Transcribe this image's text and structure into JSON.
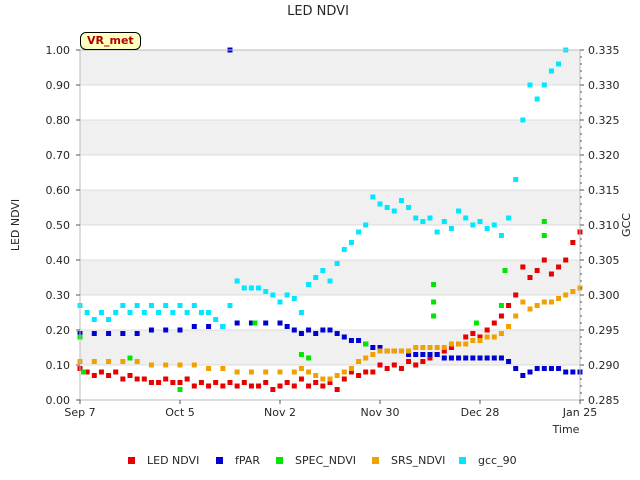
{
  "chart_data": {
    "type": "scatter",
    "title": "LED NDVI",
    "badge": "VR_met",
    "xlabel": "Time",
    "ylabel": "LED NDVI",
    "ylabel_right": "GCC",
    "x_range_days": [
      0,
      140
    ],
    "x_ticks": [
      {
        "label": "Sep 7",
        "day": 0
      },
      {
        "label": "Oct 5",
        "day": 28
      },
      {
        "label": "Nov 2",
        "day": 56
      },
      {
        "label": "Nov 30",
        "day": 84
      },
      {
        "label": "Dec 28",
        "day": 112
      },
      {
        "label": "Jan 25",
        "day": 140
      }
    ],
    "ylim": [
      0,
      1.0
    ],
    "y_ticks": [
      "0.00",
      "0.10",
      "0.20",
      "0.30",
      "0.40",
      "0.50",
      "0.60",
      "0.70",
      "0.80",
      "0.90",
      "1.00"
    ],
    "ylim_right": [
      0.285,
      0.335
    ],
    "y_ticks_right": [
      "0.285",
      "0.290",
      "0.295",
      "0.300",
      "0.305",
      "0.310",
      "0.315",
      "0.320",
      "0.325",
      "0.330",
      "0.335"
    ],
    "series": [
      {
        "name": "LED NDVI",
        "axis": "left",
        "color": "#e60000",
        "points": [
          [
            0,
            0.09
          ],
          [
            2,
            0.08
          ],
          [
            4,
            0.07
          ],
          [
            6,
            0.08
          ],
          [
            8,
            0.07
          ],
          [
            10,
            0.08
          ],
          [
            12,
            0.06
          ],
          [
            14,
            0.07
          ],
          [
            16,
            0.06
          ],
          [
            18,
            0.06
          ],
          [
            20,
            0.05
          ],
          [
            22,
            0.05
          ],
          [
            24,
            0.06
          ],
          [
            26,
            0.05
          ],
          [
            28,
            0.05
          ],
          [
            30,
            0.06
          ],
          [
            32,
            0.04
          ],
          [
            34,
            0.05
          ],
          [
            36,
            0.04
          ],
          [
            38,
            0.05
          ],
          [
            40,
            0.04
          ],
          [
            42,
            0.05
          ],
          [
            44,
            0.04
          ],
          [
            46,
            0.05
          ],
          [
            48,
            0.04
          ],
          [
            50,
            0.04
          ],
          [
            52,
            0.05
          ],
          [
            54,
            0.03
          ],
          [
            56,
            0.04
          ],
          [
            58,
            0.05
          ],
          [
            60,
            0.04
          ],
          [
            62,
            0.06
          ],
          [
            64,
            0.04
          ],
          [
            66,
            0.05
          ],
          [
            68,
            0.04
          ],
          [
            70,
            0.05
          ],
          [
            72,
            0.03
          ],
          [
            74,
            0.06
          ],
          [
            76,
            0.08
          ],
          [
            78,
            0.07
          ],
          [
            80,
            0.08
          ],
          [
            82,
            0.08
          ],
          [
            84,
            0.1
          ],
          [
            86,
            0.09
          ],
          [
            88,
            0.1
          ],
          [
            90,
            0.09
          ],
          [
            92,
            0.11
          ],
          [
            94,
            0.1
          ],
          [
            96,
            0.11
          ],
          [
            98,
            0.12
          ],
          [
            100,
            0.13
          ],
          [
            102,
            0.14
          ],
          [
            104,
            0.15
          ],
          [
            106,
            0.16
          ],
          [
            108,
            0.18
          ],
          [
            110,
            0.19
          ],
          [
            112,
            0.18
          ],
          [
            114,
            0.2
          ],
          [
            116,
            0.22
          ],
          [
            118,
            0.24
          ],
          [
            120,
            0.27
          ],
          [
            122,
            0.3
          ],
          [
            124,
            0.38
          ],
          [
            126,
            0.35
          ],
          [
            128,
            0.37
          ],
          [
            130,
            0.4
          ],
          [
            132,
            0.36
          ],
          [
            134,
            0.38
          ],
          [
            136,
            0.4
          ],
          [
            138,
            0.45
          ],
          [
            140,
            0.48
          ]
        ]
      },
      {
        "name": "fPAR",
        "axis": "left",
        "color": "#0000d0",
        "points": [
          [
            0,
            0.19
          ],
          [
            4,
            0.19
          ],
          [
            8,
            0.19
          ],
          [
            12,
            0.19
          ],
          [
            16,
            0.19
          ],
          [
            20,
            0.2
          ],
          [
            24,
            0.2
          ],
          [
            28,
            0.2
          ],
          [
            32,
            0.21
          ],
          [
            36,
            0.21
          ],
          [
            40,
            0.21
          ],
          [
            44,
            0.22
          ],
          [
            48,
            0.22
          ],
          [
            52,
            0.22
          ],
          [
            56,
            0.22
          ],
          [
            58,
            0.21
          ],
          [
            60,
            0.2
          ],
          [
            62,
            0.19
          ],
          [
            64,
            0.2
          ],
          [
            66,
            0.19
          ],
          [
            68,
            0.2
          ],
          [
            70,
            0.2
          ],
          [
            72,
            0.19
          ],
          [
            74,
            0.18
          ],
          [
            76,
            0.17
          ],
          [
            78,
            0.17
          ],
          [
            80,
            0.16
          ],
          [
            82,
            0.15
          ],
          [
            84,
            0.15
          ],
          [
            86,
            0.14
          ],
          [
            88,
            0.14
          ],
          [
            90,
            0.14
          ],
          [
            92,
            0.13
          ],
          [
            94,
            0.13
          ],
          [
            96,
            0.13
          ],
          [
            98,
            0.13
          ],
          [
            100,
            0.13
          ],
          [
            102,
            0.12
          ],
          [
            104,
            0.12
          ],
          [
            106,
            0.12
          ],
          [
            108,
            0.12
          ],
          [
            110,
            0.12
          ],
          [
            112,
            0.12
          ],
          [
            114,
            0.12
          ],
          [
            116,
            0.12
          ],
          [
            118,
            0.12
          ],
          [
            120,
            0.11
          ],
          [
            122,
            0.09
          ],
          [
            124,
            0.07
          ],
          [
            126,
            0.08
          ],
          [
            128,
            0.09
          ],
          [
            130,
            0.09
          ],
          [
            132,
            0.09
          ],
          [
            134,
            0.09
          ],
          [
            136,
            0.08
          ],
          [
            138,
            0.08
          ],
          [
            140,
            0.08
          ],
          [
            42,
            1.0
          ]
        ]
      },
      {
        "name": "SPEC_NDVI",
        "axis": "left",
        "color": "#00e600",
        "points": [
          [
            0,
            0.18
          ],
          [
            1,
            0.08
          ],
          [
            14,
            0.12
          ],
          [
            28,
            0.03
          ],
          [
            49,
            0.22
          ],
          [
            62,
            0.13
          ],
          [
            64,
            0.12
          ],
          [
            80,
            0.16
          ],
          [
            99,
            0.24
          ],
          [
            99,
            0.28
          ],
          [
            99,
            0.33
          ],
          [
            111,
            0.22
          ],
          [
            118,
            0.27
          ],
          [
            119,
            0.37
          ],
          [
            130,
            0.47
          ],
          [
            130,
            0.51
          ]
        ]
      },
      {
        "name": "SRS_NDVI",
        "axis": "left",
        "color": "#f0a000",
        "points": [
          [
            0,
            0.11
          ],
          [
            4,
            0.11
          ],
          [
            8,
            0.11
          ],
          [
            12,
            0.11
          ],
          [
            16,
            0.11
          ],
          [
            20,
            0.1
          ],
          [
            24,
            0.1
          ],
          [
            28,
            0.1
          ],
          [
            32,
            0.1
          ],
          [
            36,
            0.09
          ],
          [
            40,
            0.09
          ],
          [
            44,
            0.08
          ],
          [
            48,
            0.08
          ],
          [
            52,
            0.08
          ],
          [
            56,
            0.08
          ],
          [
            60,
            0.08
          ],
          [
            62,
            0.09
          ],
          [
            64,
            0.08
          ],
          [
            66,
            0.07
          ],
          [
            68,
            0.06
          ],
          [
            70,
            0.06
          ],
          [
            72,
            0.07
          ],
          [
            74,
            0.08
          ],
          [
            76,
            0.09
          ],
          [
            78,
            0.11
          ],
          [
            80,
            0.12
          ],
          [
            82,
            0.13
          ],
          [
            84,
            0.14
          ],
          [
            86,
            0.14
          ],
          [
            88,
            0.14
          ],
          [
            90,
            0.14
          ],
          [
            92,
            0.14
          ],
          [
            94,
            0.15
          ],
          [
            96,
            0.15
          ],
          [
            98,
            0.15
          ],
          [
            100,
            0.15
          ],
          [
            102,
            0.15
          ],
          [
            104,
            0.16
          ],
          [
            106,
            0.16
          ],
          [
            108,
            0.16
          ],
          [
            110,
            0.17
          ],
          [
            112,
            0.17
          ],
          [
            114,
            0.18
          ],
          [
            116,
            0.18
          ],
          [
            118,
            0.19
          ],
          [
            120,
            0.21
          ],
          [
            122,
            0.24
          ],
          [
            124,
            0.28
          ],
          [
            126,
            0.26
          ],
          [
            128,
            0.27
          ],
          [
            130,
            0.28
          ],
          [
            132,
            0.28
          ],
          [
            134,
            0.29
          ],
          [
            136,
            0.3
          ],
          [
            138,
            0.31
          ],
          [
            140,
            0.32
          ]
        ]
      },
      {
        "name": "gcc_90",
        "axis": "right",
        "color": "#00e8ff",
        "points": [
          [
            0,
            0.2985
          ],
          [
            2,
            0.2975
          ],
          [
            4,
            0.2965
          ],
          [
            6,
            0.2975
          ],
          [
            8,
            0.2965
          ],
          [
            10,
            0.2975
          ],
          [
            12,
            0.2985
          ],
          [
            14,
            0.2975
          ],
          [
            16,
            0.2985
          ],
          [
            18,
            0.2975
          ],
          [
            20,
            0.2985
          ],
          [
            22,
            0.2975
          ],
          [
            24,
            0.2985
          ],
          [
            26,
            0.2975
          ],
          [
            28,
            0.2985
          ],
          [
            30,
            0.2975
          ],
          [
            32,
            0.2985
          ],
          [
            34,
            0.2975
          ],
          [
            36,
            0.2975
          ],
          [
            38,
            0.2965
          ],
          [
            40,
            0.2955
          ],
          [
            42,
            0.2985
          ],
          [
            44,
            0.302
          ],
          [
            46,
            0.301
          ],
          [
            48,
            0.301
          ],
          [
            50,
            0.301
          ],
          [
            52,
            0.3005
          ],
          [
            54,
            0.3
          ],
          [
            56,
            0.299
          ],
          [
            58,
            0.3
          ],
          [
            60,
            0.2995
          ],
          [
            62,
            0.2975
          ],
          [
            64,
            0.3015
          ],
          [
            66,
            0.3025
          ],
          [
            68,
            0.3035
          ],
          [
            70,
            0.302
          ],
          [
            72,
            0.3045
          ],
          [
            74,
            0.3065
          ],
          [
            76,
            0.3075
          ],
          [
            78,
            0.309
          ],
          [
            80,
            0.31
          ],
          [
            82,
            0.314
          ],
          [
            84,
            0.313
          ],
          [
            86,
            0.3125
          ],
          [
            88,
            0.312
          ],
          [
            90,
            0.3135
          ],
          [
            92,
            0.3125
          ],
          [
            94,
            0.311
          ],
          [
            96,
            0.3105
          ],
          [
            98,
            0.311
          ],
          [
            100,
            0.309
          ],
          [
            102,
            0.3105
          ],
          [
            104,
            0.3095
          ],
          [
            106,
            0.312
          ],
          [
            108,
            0.311
          ],
          [
            110,
            0.31
          ],
          [
            112,
            0.3105
          ],
          [
            114,
            0.3095
          ],
          [
            116,
            0.31
          ],
          [
            118,
            0.3085
          ],
          [
            120,
            0.311
          ],
          [
            122,
            0.3165
          ],
          [
            124,
            0.325
          ],
          [
            126,
            0.33
          ],
          [
            128,
            0.328
          ],
          [
            130,
            0.33
          ],
          [
            132,
            0.332
          ],
          [
            134,
            0.333
          ],
          [
            136,
            0.335
          ]
        ]
      }
    ],
    "legend_position": "bottom",
    "grid": true
  }
}
